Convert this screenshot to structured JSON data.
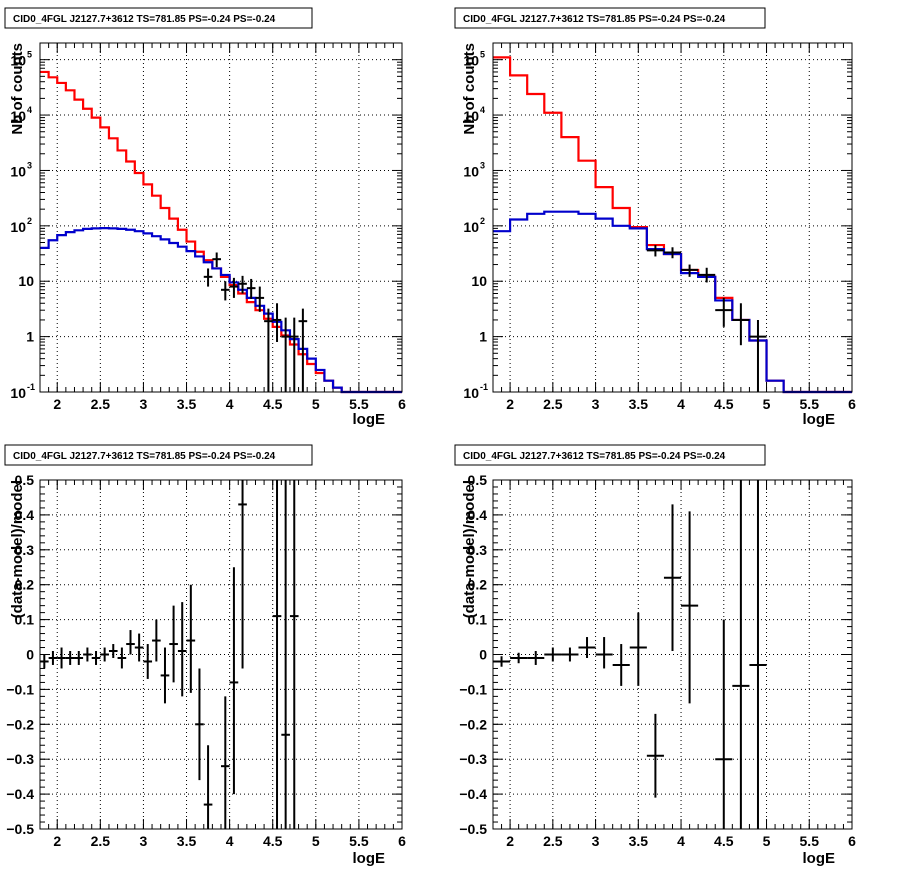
{
  "colors": {
    "model_total": "#ff0000",
    "model_other": "#0000cc",
    "data": "#000000"
  },
  "chart_data": [
    {
      "type": "histogram",
      "title": "CID0_4FGL J2127.7+3612 TS=781.85 PS=-0.24 PS=-0.24",
      "xlabel": "logE",
      "ylabel": "Nb of counts",
      "xlim": [
        1.8,
        6.0
      ],
      "ylim": [
        0.1,
        200000
      ],
      "yscale": "log",
      "grid": true,
      "xticks": [
        "2",
        "2.5",
        "3",
        "3.5",
        "4",
        "4.5",
        "5",
        "5.5",
        "6"
      ],
      "yticks": [
        {
          "value": 0.1,
          "base": "10",
          "exp": "-1"
        },
        {
          "value": 1,
          "label": "1"
        },
        {
          "value": 10,
          "label": "10"
        },
        {
          "value": 100,
          "base": "10",
          "exp": "2"
        },
        {
          "value": 1000,
          "base": "10",
          "exp": "3"
        },
        {
          "value": 10000,
          "base": "10",
          "exp": "4"
        },
        {
          "value": 100000,
          "base": "10",
          "exp": "5"
        }
      ],
      "bin_edges": [
        1.8,
        1.9,
        2.0,
        2.1,
        2.2,
        2.3,
        2.4,
        2.5,
        2.6,
        2.7,
        2.8,
        2.9,
        3.0,
        3.1,
        3.2,
        3.3,
        3.4,
        3.5,
        3.6,
        3.7,
        3.8,
        3.9,
        4.0,
        4.1,
        4.2,
        4.3,
        4.4,
        4.5,
        4.6,
        4.7,
        4.8,
        4.9,
        5.0,
        5.1,
        5.2,
        5.3,
        5.4,
        5.5,
        5.6,
        5.7,
        5.8,
        5.9,
        6.0
      ],
      "series": [
        {
          "color_key": "model_total",
          "values": [
            60000,
            48000,
            38000,
            28000,
            19000,
            13000,
            9000,
            6000,
            3800,
            2300,
            1450,
            900,
            560,
            350,
            210,
            135,
            85,
            52,
            34,
            24,
            17,
            12,
            8.5,
            6,
            4.2,
            3,
            2.1,
            1.5,
            1.05,
            0.72,
            0.48,
            0.32,
            0.22,
            0.16,
            0.12,
            0.1,
            0.1,
            0.1,
            0.1,
            0.1,
            0.1,
            0.1
          ]
        },
        {
          "color_key": "model_other",
          "values": [
            40,
            55,
            68,
            77,
            83,
            88,
            90,
            91,
            90,
            88,
            85,
            80,
            73,
            65,
            57,
            49,
            42,
            35,
            28,
            22,
            17,
            13,
            9.5,
            7,
            5,
            3.6,
            2.6,
            1.85,
            1.3,
            0.9,
            0.6,
            0.4,
            0.25,
            0.16,
            0.12,
            0.1,
            0.1,
            0.1,
            0.1,
            0.1,
            0.1,
            0.1
          ]
        }
      ],
      "points": [
        {
          "x": 3.85,
          "xerr": 0.05,
          "y": 25,
          "ylo": 18,
          "yhi": 33
        },
        {
          "x": 3.75,
          "xerr": 0.05,
          "y": 12,
          "ylo": 8,
          "yhi": 17
        },
        {
          "x": 3.95,
          "xerr": 0.05,
          "y": 7,
          "ylo": 4.5,
          "yhi": 10
        },
        {
          "x": 4.05,
          "xerr": 0.05,
          "y": 8,
          "ylo": 5,
          "yhi": 11.5
        },
        {
          "x": 4.15,
          "xerr": 0.05,
          "y": 9,
          "ylo": 6,
          "yhi": 12.5
        },
        {
          "x": 4.25,
          "xerr": 0.05,
          "y": 7.5,
          "ylo": 4.8,
          "yhi": 11
        },
        {
          "x": 4.35,
          "xerr": 0.05,
          "y": 5,
          "ylo": 2.8,
          "yhi": 8
        },
        {
          "x": 4.45,
          "xerr": 0.05,
          "y": 1.9,
          "ylo": 0.1,
          "yhi": 3.2
        },
        {
          "x": 4.55,
          "xerr": 0.05,
          "y": 2,
          "ylo": 0.8,
          "yhi": 4
        },
        {
          "x": 4.65,
          "xerr": 0.05,
          "y": 1,
          "ylo": 0.1,
          "yhi": 2.2
        },
        {
          "x": 4.75,
          "xerr": 0.05,
          "y": 1,
          "ylo": 0.1,
          "yhi": 2.2
        },
        {
          "x": 4.85,
          "xerr": 0.05,
          "y": 1.9,
          "ylo": 0.1,
          "yhi": 3.2
        }
      ]
    },
    {
      "type": "histogram",
      "title": "CID0_4FGL J2127.7+3612 TS=781.85 PS=-0.24 PS=-0.24",
      "xlabel": "logE",
      "ylabel": "Nb of counts",
      "xlim": [
        1.8,
        6.0
      ],
      "ylim": [
        0.1,
        200000
      ],
      "yscale": "log",
      "grid": true,
      "xticks": [
        "2",
        "2.5",
        "3",
        "3.5",
        "4",
        "4.5",
        "5",
        "5.5",
        "6"
      ],
      "yticks": [
        {
          "value": 0.1,
          "base": "10",
          "exp": "-1"
        },
        {
          "value": 1,
          "label": "1"
        },
        {
          "value": 10,
          "label": "10"
        },
        {
          "value": 100,
          "base": "10",
          "exp": "2"
        },
        {
          "value": 1000,
          "base": "10",
          "exp": "3"
        },
        {
          "value": 10000,
          "base": "10",
          "exp": "4"
        },
        {
          "value": 100000,
          "base": "10",
          "exp": "5"
        }
      ],
      "bin_edges": [
        1.8,
        2.0,
        2.2,
        2.4,
        2.6,
        2.8,
        3.0,
        3.2,
        3.4,
        3.6,
        3.8,
        4.0,
        4.2,
        4.4,
        4.6,
        4.8,
        5.0,
        5.2,
        5.4,
        5.6,
        5.8,
        6.0
      ],
      "series": [
        {
          "color_key": "model_total",
          "values": [
            110000,
            52000,
            24000,
            11000,
            4000,
            1500,
            500,
            210,
            95,
            45,
            31,
            16,
            12,
            5,
            2,
            0.85,
            0.16,
            0.1,
            0.1,
            0.1,
            0.1
          ]
        },
        {
          "color_key": "model_other",
          "values": [
            80,
            130,
            165,
            180,
            180,
            165,
            135,
            100,
            90,
            38,
            31,
            14,
            12,
            4.5,
            2,
            0.85,
            0.16,
            0.1,
            0.1,
            0.1,
            0.1
          ]
        }
      ],
      "points": [
        {
          "x": 3.7,
          "xerr": 0.1,
          "y": 36,
          "ylo": 28,
          "yhi": 45
        },
        {
          "x": 3.9,
          "xerr": 0.1,
          "y": 33,
          "ylo": 26,
          "yhi": 41
        },
        {
          "x": 4.1,
          "xerr": 0.1,
          "y": 16,
          "ylo": 12,
          "yhi": 20
        },
        {
          "x": 4.3,
          "xerr": 0.1,
          "y": 13,
          "ylo": 9.5,
          "yhi": 17.5
        },
        {
          "x": 4.5,
          "xerr": 0.1,
          "y": 3,
          "ylo": 1.5,
          "yhi": 5
        },
        {
          "x": 4.7,
          "xerr": 0.1,
          "y": 2,
          "ylo": 0.7,
          "yhi": 4
        },
        {
          "x": 4.9,
          "xerr": 0.1,
          "y": 1,
          "ylo": 0.1,
          "yhi": 2
        }
      ]
    },
    {
      "type": "scatter",
      "title": "CID0_4FGL J2127.7+3612 TS=781.85 PS=-0.24 PS=-0.24",
      "xlabel": "logE",
      "ylabel": "(data-model)/model",
      "xlim": [
        1.8,
        6.0
      ],
      "ylim": [
        -0.5,
        0.5
      ],
      "yscale": "linear",
      "grid": true,
      "xticks": [
        "2",
        "2.5",
        "3",
        "3.5",
        "4",
        "4.5",
        "5",
        "5.5",
        "6"
      ],
      "yticks": [
        {
          "value": -0.5,
          "label": "−0.5"
        },
        {
          "value": -0.4,
          "label": "−0.4"
        },
        {
          "value": -0.3,
          "label": "−0.3"
        },
        {
          "value": -0.2,
          "label": "−0.2"
        },
        {
          "value": -0.1,
          "label": "−0.1"
        },
        {
          "value": 0,
          "label": "0"
        },
        {
          "value": 0.1,
          "label": "0.1"
        },
        {
          "value": 0.2,
          "label": "0.2"
        },
        {
          "value": 0.3,
          "label": "0.3"
        },
        {
          "value": 0.4,
          "label": "0.4"
        },
        {
          "value": 0.5,
          "label": "0.5"
        }
      ],
      "points": [
        {
          "x": 1.85,
          "xerr": 0.05,
          "y": -0.02,
          "ylo": -0.04,
          "yhi": 0.0
        },
        {
          "x": 1.95,
          "xerr": 0.05,
          "y": -0.01,
          "ylo": -0.03,
          "yhi": 0.01
        },
        {
          "x": 2.05,
          "xerr": 0.05,
          "y": -0.01,
          "ylo": -0.04,
          "yhi": 0.02
        },
        {
          "x": 2.15,
          "xerr": 0.05,
          "y": -0.01,
          "ylo": -0.03,
          "yhi": 0.01
        },
        {
          "x": 2.25,
          "xerr": 0.05,
          "y": -0.01,
          "ylo": -0.03,
          "yhi": 0.01
        },
        {
          "x": 2.35,
          "xerr": 0.05,
          "y": 0.0,
          "ylo": -0.02,
          "yhi": 0.02
        },
        {
          "x": 2.45,
          "xerr": 0.05,
          "y": -0.01,
          "ylo": -0.03,
          "yhi": 0.01
        },
        {
          "x": 2.55,
          "xerr": 0.05,
          "y": 0.0,
          "ylo": -0.02,
          "yhi": 0.02
        },
        {
          "x": 2.65,
          "xerr": 0.05,
          "y": 0.01,
          "ylo": -0.01,
          "yhi": 0.03
        },
        {
          "x": 2.75,
          "xerr": 0.05,
          "y": -0.01,
          "ylo": -0.04,
          "yhi": 0.02
        },
        {
          "x": 2.85,
          "xerr": 0.05,
          "y": 0.03,
          "ylo": 0.0,
          "yhi": 0.07
        },
        {
          "x": 2.95,
          "xerr": 0.05,
          "y": 0.02,
          "ylo": -0.02,
          "yhi": 0.06
        },
        {
          "x": 3.05,
          "xerr": 0.05,
          "y": -0.02,
          "ylo": -0.07,
          "yhi": 0.03
        },
        {
          "x": 3.15,
          "xerr": 0.05,
          "y": 0.04,
          "ylo": -0.02,
          "yhi": 0.1
        },
        {
          "x": 3.25,
          "xerr": 0.05,
          "y": -0.06,
          "ylo": -0.14,
          "yhi": 0.02
        },
        {
          "x": 3.35,
          "xerr": 0.05,
          "y": 0.03,
          "ylo": -0.08,
          "yhi": 0.14
        },
        {
          "x": 3.45,
          "xerr": 0.05,
          "y": 0.01,
          "ylo": -0.12,
          "yhi": 0.15
        },
        {
          "x": 3.55,
          "xerr": 0.05,
          "y": 0.04,
          "ylo": -0.11,
          "yhi": 0.2
        },
        {
          "x": 3.65,
          "xerr": 0.05,
          "y": -0.2,
          "ylo": -0.36,
          "yhi": -0.04
        },
        {
          "x": 3.75,
          "xerr": 0.05,
          "y": -0.43,
          "ylo": -0.5,
          "yhi": -0.26
        },
        {
          "x": 3.95,
          "xerr": 0.05,
          "y": -0.32,
          "ylo": -0.5,
          "yhi": -0.12
        },
        {
          "x": 4.05,
          "xerr": 0.05,
          "y": -0.08,
          "ylo": -0.4,
          "yhi": 0.25
        },
        {
          "x": 4.15,
          "xerr": 0.05,
          "y": 0.43,
          "ylo": -0.04,
          "yhi": 0.5
        },
        {
          "x": 4.55,
          "xerr": 0.05,
          "y": 0.11,
          "ylo": -0.5,
          "yhi": 0.5
        },
        {
          "x": 4.65,
          "xerr": 0.05,
          "y": -0.23,
          "ylo": -0.5,
          "yhi": 0.5
        },
        {
          "x": 4.75,
          "xerr": 0.05,
          "y": 0.11,
          "ylo": -0.5,
          "yhi": 0.5
        }
      ]
    },
    {
      "type": "scatter",
      "title": "CID0_4FGL J2127.7+3612 TS=781.85 PS=-0.24 PS=-0.24",
      "xlabel": "logE",
      "ylabel": "(data-model)/model",
      "xlim": [
        1.8,
        6.0
      ],
      "ylim": [
        -0.5,
        0.5
      ],
      "yscale": "linear",
      "grid": true,
      "xticks": [
        "2",
        "2.5",
        "3",
        "3.5",
        "4",
        "4.5",
        "5",
        "5.5",
        "6"
      ],
      "yticks": [
        {
          "value": -0.5,
          "label": "−0.5"
        },
        {
          "value": -0.4,
          "label": "−0.4"
        },
        {
          "value": -0.3,
          "label": "−0.3"
        },
        {
          "value": -0.2,
          "label": "−0.2"
        },
        {
          "value": -0.1,
          "label": "−0.1"
        },
        {
          "value": 0,
          "label": "0"
        },
        {
          "value": 0.1,
          "label": "0.1"
        },
        {
          "value": 0.2,
          "label": "0.2"
        },
        {
          "value": 0.3,
          "label": "0.3"
        },
        {
          "value": 0.4,
          "label": "0.4"
        },
        {
          "value": 0.5,
          "label": "0.5"
        }
      ],
      "points": [
        {
          "x": 1.9,
          "xerr": 0.1,
          "y": -0.02,
          "ylo": -0.035,
          "yhi": -0.005
        },
        {
          "x": 2.1,
          "xerr": 0.1,
          "y": -0.01,
          "ylo": -0.025,
          "yhi": 0.005
        },
        {
          "x": 2.3,
          "xerr": 0.1,
          "y": -0.01,
          "ylo": -0.03,
          "yhi": 0.01
        },
        {
          "x": 2.5,
          "xerr": 0.1,
          "y": 0.0,
          "ylo": -0.02,
          "yhi": 0.02
        },
        {
          "x": 2.7,
          "xerr": 0.1,
          "y": 0.0,
          "ylo": -0.02,
          "yhi": 0.02
        },
        {
          "x": 2.9,
          "xerr": 0.1,
          "y": 0.02,
          "ylo": -0.01,
          "yhi": 0.05
        },
        {
          "x": 3.1,
          "xerr": 0.1,
          "y": 0.0,
          "ylo": -0.04,
          "yhi": 0.05
        },
        {
          "x": 3.3,
          "xerr": 0.1,
          "y": -0.03,
          "ylo": -0.09,
          "yhi": 0.03
        },
        {
          "x": 3.5,
          "xerr": 0.1,
          "y": 0.02,
          "ylo": -0.09,
          "yhi": 0.12
        },
        {
          "x": 3.7,
          "xerr": 0.1,
          "y": -0.29,
          "ylo": -0.41,
          "yhi": -0.17
        },
        {
          "x": 3.9,
          "xerr": 0.1,
          "y": 0.22,
          "ylo": 0.01,
          "yhi": 0.43
        },
        {
          "x": 4.1,
          "xerr": 0.1,
          "y": 0.14,
          "ylo": -0.14,
          "yhi": 0.41
        },
        {
          "x": 4.5,
          "xerr": 0.1,
          "y": -0.3,
          "ylo": -0.5,
          "yhi": 0.1
        },
        {
          "x": 4.7,
          "xerr": 0.1,
          "y": -0.09,
          "ylo": -0.5,
          "yhi": 0.5
        },
        {
          "x": 4.9,
          "xerr": 0.1,
          "y": -0.03,
          "ylo": -0.5,
          "yhi": 0.5
        }
      ]
    }
  ]
}
